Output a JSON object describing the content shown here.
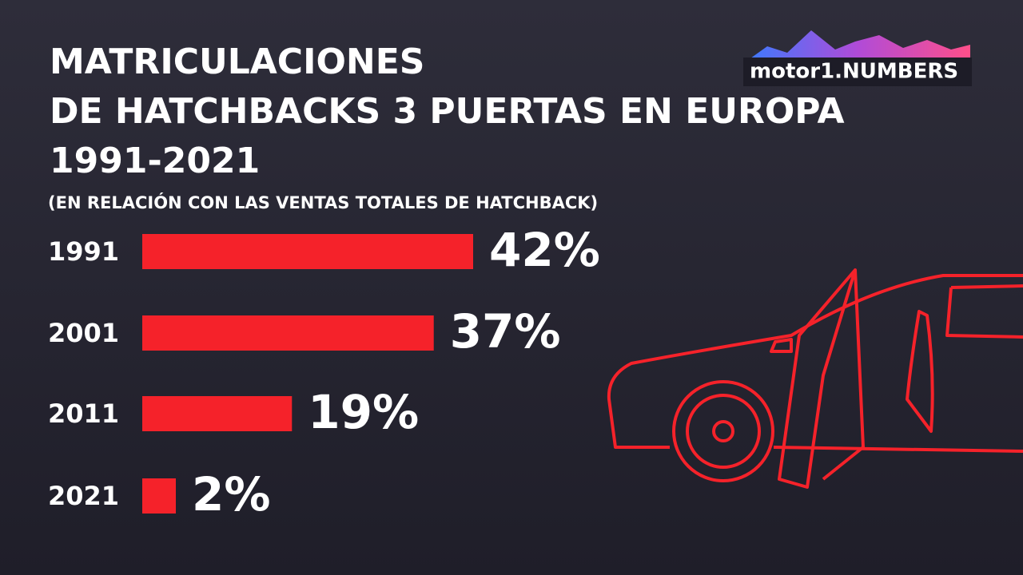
{
  "chart_data": {
    "type": "bar",
    "title": [
      "MATRICULACIONES",
      "DE HATCHBACKS 3 PUERTAS EN EUROPA",
      "1991-2021"
    ],
    "subtitle": "(EN RELACIÓN CON LAS VENTAS TOTALES DE HATCHBACK)",
    "logo": "motor1.NUMBERS",
    "categories": [
      "1991",
      "2001",
      "2011",
      "2021"
    ],
    "values": [
      42,
      37,
      19,
      2
    ],
    "value_labels": [
      "42%",
      "37%",
      "19%",
      "2%"
    ],
    "color": "#f5222a"
  }
}
